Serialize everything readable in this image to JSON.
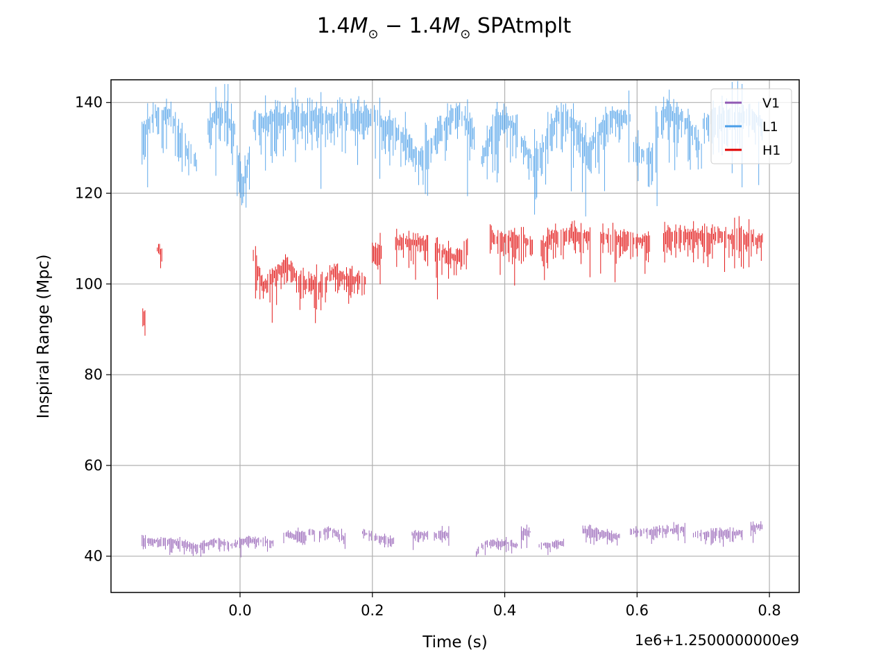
{
  "chart_data": {
    "type": "scatter",
    "title_prefix": "1.4",
    "title_sub": "⊙",
    "title_sep": " − ",
    "title_suffix": " SPAtmplt",
    "xlabel": "Time (s)",
    "ylabel": "Inspiral Range (Mpc)",
    "x_offset_label": "1e6+1.2500000000e9",
    "xlim": [
      -0.195,
      0.845
    ],
    "ylim": [
      32.0,
      145.0
    ],
    "xticks": [
      0.0,
      0.2,
      0.4,
      0.6,
      0.8
    ],
    "xtick_labels": [
      "0.0",
      "0.2",
      "0.4",
      "0.6",
      "0.8"
    ],
    "yticks": [
      40,
      60,
      80,
      100,
      120,
      140
    ],
    "ytick_labels": [
      "40",
      "60",
      "80",
      "100",
      "120",
      "140"
    ],
    "grid": true,
    "legend": {
      "position": "top-right",
      "entries": [
        "V1",
        "L1",
        "H1"
      ]
    },
    "series": [
      {
        "name": "V1",
        "color": "#9059b3",
        "segments": [
          {
            "x": [
              -0.148,
              -0.09,
              -0.065,
              -0.04,
              -0.015,
              0.0,
              0.015,
              0.05
            ],
            "y": [
              43.8,
              43.2,
              42.0,
              43.5,
              42.5,
              43.4,
              43.8,
              43.2
            ]
          },
          {
            "x": [
              0.066,
              0.1
            ],
            "y": [
              45.0,
              44.5
            ]
          },
          {
            "x": [
              0.104,
              0.114
            ],
            "y": [
              45.8,
              45.5
            ]
          },
          {
            "x": [
              0.12,
              0.135,
              0.16
            ],
            "y": [
              45.0,
              46.2,
              44.0
            ]
          },
          {
            "x": [
              0.185,
              0.2,
              0.235
            ],
            "y": [
              45.5,
              44.5,
              43.5
            ]
          },
          {
            "x": [
              0.26,
              0.285
            ],
            "y": [
              45.0,
              45.0
            ]
          },
          {
            "x": [
              0.292,
              0.316
            ],
            "y": [
              45.0,
              45.2
            ]
          },
          {
            "x": [
              0.357,
              0.37,
              0.4,
              0.42
            ],
            "y": [
              41.0,
              43.0,
              43.2,
              42.5
            ]
          },
          {
            "x": [
              0.425,
              0.44
            ],
            "y": [
              45.5,
              45.5
            ]
          },
          {
            "x": [
              0.452,
              0.49
            ],
            "y": [
              42.5,
              43.0
            ]
          },
          {
            "x": [
              0.518,
              0.575
            ],
            "y": [
              46.0,
              44.5
            ]
          },
          {
            "x": [
              0.59,
              0.673
            ],
            "y": [
              45.5,
              46.2
            ]
          },
          {
            "x": [
              0.685,
              0.76
            ],
            "y": [
              45.0,
              45.5
            ]
          },
          {
            "x": [
              0.772,
              0.79
            ],
            "y": [
              46.5,
              47.0
            ]
          }
        ]
      },
      {
        "name": "L1",
        "color": "#4a9ee8",
        "segments": [
          {
            "x": [
              -0.148,
              -0.13,
              -0.105,
              -0.085,
              -0.065
            ],
            "y": [
              133.0,
              138.0,
              138.0,
              131.0,
              127.0
            ]
          },
          {
            "x": [
              -0.05,
              -0.035,
              -0.02,
              -0.008
            ],
            "y": [
              135.0,
              138.0,
              137.5,
              134.0
            ]
          },
          {
            "x": [
              -0.006,
              0.005,
              0.015
            ],
            "y": [
              128.0,
              123.0,
              130.0
            ]
          },
          {
            "x": [
              0.02,
              0.08,
              0.14,
              0.2,
              0.24,
              0.27,
              0.3,
              0.33,
              0.355
            ],
            "y": [
              136.0,
              137.5,
              137.0,
              137.5,
              134.0,
              128.0,
              134.0,
              139.0,
              133.0
            ]
          },
          {
            "x": [
              0.365,
              0.38,
              0.4,
              0.42
            ],
            "y": [
              128.0,
              134.0,
              137.0,
              134.0
            ]
          },
          {
            "x": [
              0.425,
              0.445,
              0.46,
              0.48,
              0.505,
              0.525,
              0.56,
              0.59
            ],
            "y": [
              132.0,
              127.0,
              131.0,
              138.0,
              136.0,
              130.0,
              137.5,
              137.0
            ]
          },
          {
            "x": [
              0.595,
              0.62,
              0.64,
              0.67,
              0.7
            ],
            "y": [
              131.0,
              128.0,
              138.5,
              137.0,
              130.0
            ]
          },
          {
            "x": [
              0.7,
              0.74,
              0.78,
              0.79
            ],
            "y": [
              136.0,
              138.0,
              137.0,
              136.0
            ]
          }
        ]
      },
      {
        "name": "H1",
        "color": "#e00000",
        "segments": [
          {
            "x": [
              -0.147,
              -0.143
            ],
            "y": [
              94.0,
              93.0
            ]
          },
          {
            "x": [
              -0.125,
              -0.118
            ],
            "y": [
              108.0,
              107.5
            ]
          },
          {
            "x": [
              0.02,
              0.035,
              0.05,
              0.07,
              0.09,
              0.12,
              0.14,
              0.16,
              0.19
            ],
            "y": [
              107.0,
              100.0,
              102.0,
              105.0,
              101.0,
              100.0,
              103.0,
              101.5,
              101.5
            ]
          },
          {
            "x": [
              0.2,
              0.215
            ],
            "y": [
              108.0,
              107.5
            ]
          },
          {
            "x": [
              0.235,
              0.285
            ],
            "y": [
              109.5,
              109.5
            ]
          },
          {
            "x": [
              0.295,
              0.325,
              0.345
            ],
            "y": [
              108.0,
              106.0,
              108.0
            ]
          },
          {
            "x": [
              0.378,
              0.42,
              0.445
            ],
            "y": [
              110.5,
              110.0,
              109.5
            ]
          },
          {
            "x": [
              0.455,
              0.47,
              0.5,
              0.53
            ],
            "y": [
              108.0,
              111.0,
              111.5,
              111.0
            ]
          },
          {
            "x": [
              0.545,
              0.58,
              0.62
            ],
            "y": [
              111.0,
              110.0,
              110.0
            ]
          },
          {
            "x": [
              0.64,
              0.68,
              0.72,
              0.75,
              0.79
            ],
            "y": [
              111.0,
              111.0,
              111.0,
              110.5,
              110.0
            ]
          }
        ]
      }
    ]
  }
}
